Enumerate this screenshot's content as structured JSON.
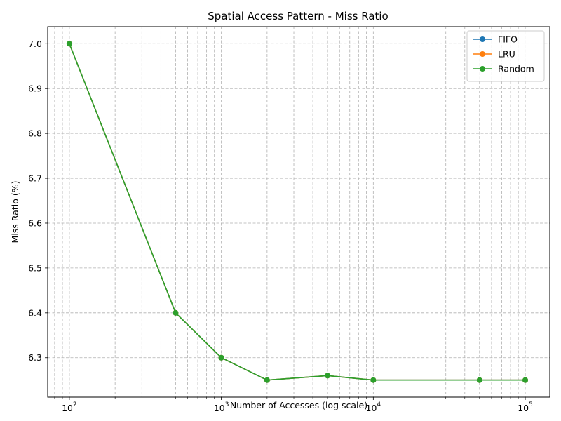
{
  "chart_data": {
    "type": "line",
    "title": "Spatial Access Pattern - Miss Ratio",
    "xlabel": "Number of Accesses (log scale)",
    "ylabel": "Miss Ratio (%)",
    "xscale": "log",
    "xlim": [
      72,
      145000
    ],
    "ylim": [
      6.212,
      7.038
    ],
    "x": [
      100,
      500,
      1000,
      2000,
      5000,
      10000,
      50000,
      100000
    ],
    "x_ticks": [
      {
        "value": 100,
        "base": "10",
        "exp": "2"
      },
      {
        "value": 1000,
        "base": "10",
        "exp": "3"
      },
      {
        "value": 10000,
        "base": "10",
        "exp": "4"
      },
      {
        "value": 100000,
        "base": "10",
        "exp": "5"
      }
    ],
    "y_ticks": [
      "6.3",
      "6.4",
      "6.5",
      "6.6",
      "6.7",
      "6.8",
      "6.9",
      "7.0"
    ],
    "grid": true,
    "legend_position": "top-right",
    "series": [
      {
        "name": "FIFO",
        "color": "#1f77b4",
        "values": [
          7.0,
          6.4,
          6.3,
          6.25,
          6.26,
          6.25,
          6.25,
          6.25
        ]
      },
      {
        "name": "LRU",
        "color": "#ff7f0e",
        "values": [
          7.0,
          6.4,
          6.3,
          6.25,
          6.26,
          6.25,
          6.25,
          6.25
        ]
      },
      {
        "name": "Random",
        "color": "#2ca02c",
        "values": [
          7.0,
          6.4,
          6.3,
          6.25,
          6.26,
          6.25,
          6.25,
          6.25
        ]
      }
    ]
  }
}
